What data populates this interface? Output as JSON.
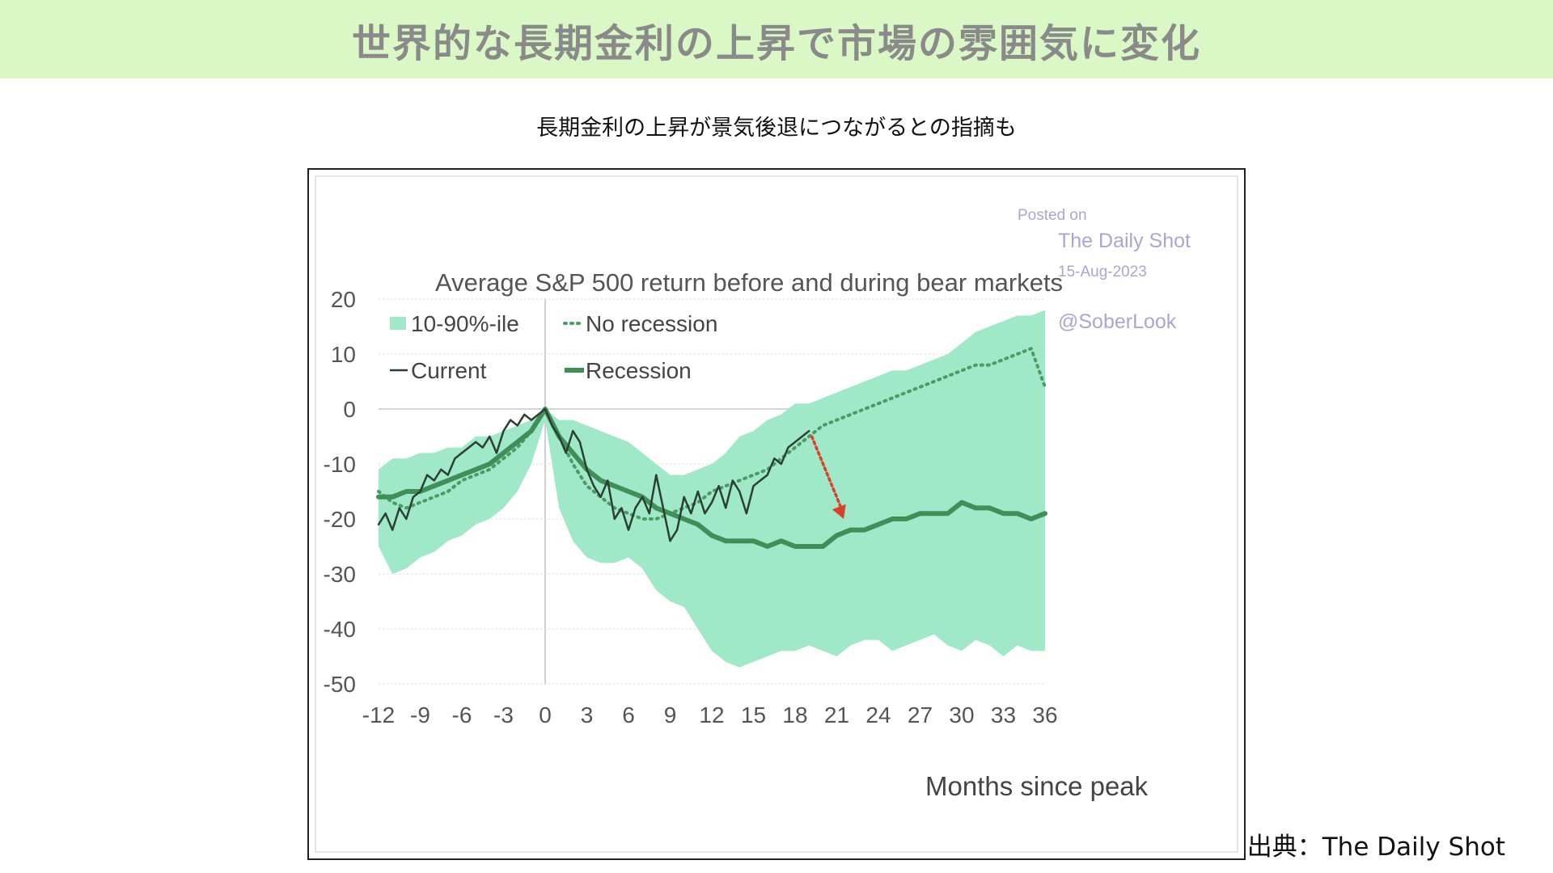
{
  "header": {
    "title": "世界的な長期金利の上昇で市場の雰囲気に変化"
  },
  "subtitle": "長期金利の上昇が景気後退につながるとの指摘も",
  "source": "出典：The Daily Shot",
  "watermark": {
    "line1": "Posted on",
    "line2": "The Daily Shot",
    "line3": "15-Aug-2023",
    "line4": "@SoberLook"
  },
  "colors": {
    "band": "#9fe8c8",
    "current": "#2c3e35",
    "recession": "#3f8f56",
    "no_recession": "#4f9a63",
    "arrow": "#d9412b",
    "watermark": "#a9a6d6",
    "banner": "#daf8c5"
  },
  "chart_data": {
    "type": "line",
    "title": "Average S&P 500 return before and during bear markets",
    "xlabel": "Months since peak",
    "ylabel": "",
    "xlim": [
      -12,
      36
    ],
    "ylim": [
      -50,
      20
    ],
    "x_ticks": [
      "-12",
      "-9",
      "-6",
      "-3",
      "0",
      "3",
      "6",
      "9",
      "12",
      "15",
      "18",
      "21",
      "24",
      "27",
      "30",
      "33",
      "36"
    ],
    "y_ticks": [
      "20",
      "10",
      "0",
      "-10",
      "-20",
      "-30",
      "-40",
      "-50"
    ],
    "legend": [
      "10-90%-ile",
      "No recession",
      "Current",
      "Recession"
    ],
    "legend_position": "top-left",
    "grid": "horizontal dotted",
    "band_10_90": {
      "x": [
        -12,
        -11,
        -10,
        -9,
        -8,
        -7,
        -6,
        -5,
        -4,
        -3,
        -2,
        -1,
        0,
        1,
        2,
        3,
        4,
        5,
        6,
        7,
        8,
        9,
        10,
        11,
        12,
        13,
        14,
        15,
        16,
        17,
        18,
        19,
        20,
        21,
        22,
        23,
        24,
        25,
        26,
        27,
        28,
        29,
        30,
        31,
        32,
        33,
        34,
        35,
        36
      ],
      "upper": [
        -11,
        -9,
        -9,
        -8,
        -8,
        -7,
        -7,
        -5,
        -5,
        -4,
        -3,
        -2,
        0,
        -2,
        -2,
        -3,
        -4,
        -5,
        -6,
        -8,
        -10,
        -12,
        -12,
        -11,
        -10,
        -8,
        -5,
        -4,
        -2,
        -1,
        1,
        1,
        2,
        3,
        4,
        5,
        6,
        7,
        7,
        8,
        9,
        10,
        12,
        14,
        15,
        16,
        17,
        17,
        18
      ],
      "lower": [
        -25,
        -30,
        -29,
        -27,
        -26,
        -24,
        -23,
        -21,
        -20,
        -18,
        -15,
        -10,
        -2,
        -18,
        -24,
        -27,
        -28,
        -28,
        -27,
        -29,
        -33,
        -35,
        -36,
        -40,
        -44,
        -46,
        -47,
        -46,
        -45,
        -44,
        -44,
        -43,
        -44,
        -45,
        -43,
        -42,
        -42,
        -44,
        -43,
        -42,
        -41,
        -43,
        -44,
        -42,
        -43,
        -45,
        -43,
        -44,
        -44
      ]
    },
    "series": [
      {
        "name": "Current",
        "x": [
          -12,
          -11.5,
          -11,
          -10.5,
          -10,
          -9.5,
          -9,
          -8.5,
          -8,
          -7.5,
          -7,
          -6.5,
          -6,
          -5.5,
          -5,
          -4.5,
          -4,
          -3.5,
          -3,
          -2.5,
          -2,
          -1.5,
          -1,
          -0.5,
          0,
          0.5,
          1,
          1.5,
          2,
          2.5,
          3,
          3.5,
          4,
          4.5,
          5,
          5.5,
          6,
          6.5,
          7,
          7.5,
          8,
          8.5,
          9,
          9.5,
          10,
          10.5,
          11,
          11.5,
          12,
          12.5,
          13,
          13.5,
          14,
          14.5,
          15,
          15.5,
          16,
          16.5,
          17,
          17.5,
          18,
          18.5,
          19
        ],
        "values": [
          -21,
          -19,
          -22,
          -18,
          -20,
          -16,
          -15,
          -12,
          -13,
          -11,
          -12,
          -9,
          -8,
          -7,
          -6,
          -7,
          -5,
          -8,
          -4,
          -2,
          -3,
          -1,
          -2,
          -1,
          0,
          -3,
          -5,
          -8,
          -4,
          -6,
          -11,
          -14,
          -16,
          -13,
          -20,
          -18,
          -22,
          -18,
          -16,
          -19,
          -12,
          -18,
          -24,
          -22,
          -16,
          -19,
          -15,
          -19,
          -17,
          -14,
          -18,
          -13,
          -15,
          -19,
          -14,
          -13,
          -12,
          -9,
          -10,
          -7,
          -6,
          -5,
          -4
        ],
        "style": "thin solid"
      },
      {
        "name": "Recession",
        "x": [
          -12,
          -11,
          -10,
          -9,
          -8,
          -7,
          -6,
          -5,
          -4,
          -3,
          -2,
          -1,
          0,
          1,
          2,
          3,
          4,
          5,
          6,
          7,
          8,
          9,
          10,
          11,
          12,
          13,
          14,
          15,
          16,
          17,
          18,
          19,
          20,
          21,
          22,
          23,
          24,
          25,
          26,
          27,
          28,
          29,
          30,
          31,
          32,
          33,
          34,
          35,
          36
        ],
        "values": [
          -16,
          -16,
          -15,
          -15,
          -14,
          -13,
          -12,
          -11,
          -10,
          -8,
          -6,
          -4,
          0,
          -5,
          -8,
          -11,
          -13,
          -14,
          -15,
          -16,
          -18,
          -19,
          -20,
          -21,
          -23,
          -24,
          -24,
          -24,
          -25,
          -24,
          -25,
          -25,
          -25,
          -23,
          -22,
          -22,
          -21,
          -20,
          -20,
          -19,
          -19,
          -19,
          -17,
          -18,
          -18,
          -19,
          -19,
          -20,
          -19
        ],
        "style": "thick solid"
      },
      {
        "name": "No recession",
        "x": [
          -12,
          -11,
          -10,
          -9,
          -8,
          -7,
          -6,
          -5,
          -4,
          -3,
          -2,
          -1,
          0,
          1,
          2,
          3,
          4,
          5,
          6,
          7,
          8,
          9,
          10,
          11,
          12,
          13,
          14,
          15,
          16,
          17,
          18,
          19,
          20,
          21,
          22,
          23,
          24,
          25,
          26,
          27,
          28,
          29,
          30,
          31,
          32,
          33,
          34,
          35,
          36
        ],
        "values": [
          -15,
          -17,
          -18,
          -17,
          -16,
          -15,
          -13,
          -12,
          -11,
          -9,
          -7,
          -4,
          0,
          -5,
          -10,
          -14,
          -16,
          -18,
          -19,
          -20,
          -20,
          -19,
          -18,
          -17,
          -15,
          -14,
          -13,
          -12,
          -11,
          -9,
          -7,
          -5,
          -3,
          -2,
          -1,
          0,
          1,
          2,
          3,
          4,
          5,
          6,
          7,
          8,
          8,
          9,
          10,
          11,
          4
        ],
        "style": "dotted"
      }
    ],
    "annotation_arrow": {
      "from": [
        19.2,
        -5
      ],
      "to": [
        21.5,
        -20
      ],
      "style": "red dotted arrow"
    }
  }
}
